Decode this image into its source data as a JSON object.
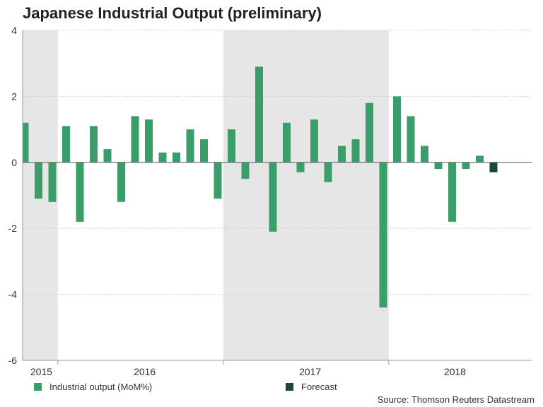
{
  "chart_data": {
    "type": "bar",
    "title": "Japanese Industrial Output (preliminary)",
    "source": "Source: Thomson Reuters Datastream",
    "ylim": [
      -6,
      4
    ],
    "yticks": [
      4,
      2,
      0,
      -2,
      -4,
      -6
    ],
    "grid": true,
    "year_labels": [
      {
        "label": "2015",
        "index": 1.2
      },
      {
        "label": "2016",
        "index": 8.7
      },
      {
        "label": "2017",
        "index": 20.7
      },
      {
        "label": "2018",
        "index": 31.2
      }
    ],
    "year_ticks": [
      2.4,
      14.4,
      26.4
    ],
    "shaded_ranges": [
      [
        -0.4,
        2.4
      ],
      [
        14.4,
        26.4
      ]
    ],
    "legend": [
      {
        "name": "Industrial output (MoM%)",
        "color": "#3a9e6b"
      },
      {
        "name": "Forecast",
        "color": "#1b4a34"
      }
    ],
    "series": [
      {
        "name": "Industrial output (MoM%)",
        "color": "#3a9e6b",
        "values": [
          1.2,
          -1.1,
          -1.2,
          1.1,
          -1.8,
          1.1,
          0.4,
          -1.2,
          1.4,
          1.3,
          0.3,
          0.3,
          1.0,
          0.7,
          -1.1,
          1.0,
          -0.5,
          2.9,
          -2.1,
          1.2,
          -0.3,
          1.3,
          -0.6,
          0.5,
          0.7,
          1.8,
          -4.4,
          2.0,
          1.4,
          0.5,
          -0.2,
          -1.8,
          -0.2,
          0.2,
          null
        ]
      },
      {
        "name": "Forecast",
        "color": "#1b4a34",
        "values": [
          null,
          null,
          null,
          null,
          null,
          null,
          null,
          null,
          null,
          null,
          null,
          null,
          null,
          null,
          null,
          null,
          null,
          null,
          null,
          null,
          null,
          null,
          null,
          null,
          null,
          null,
          null,
          null,
          null,
          null,
          null,
          null,
          null,
          null,
          -0.3
        ]
      }
    ]
  }
}
